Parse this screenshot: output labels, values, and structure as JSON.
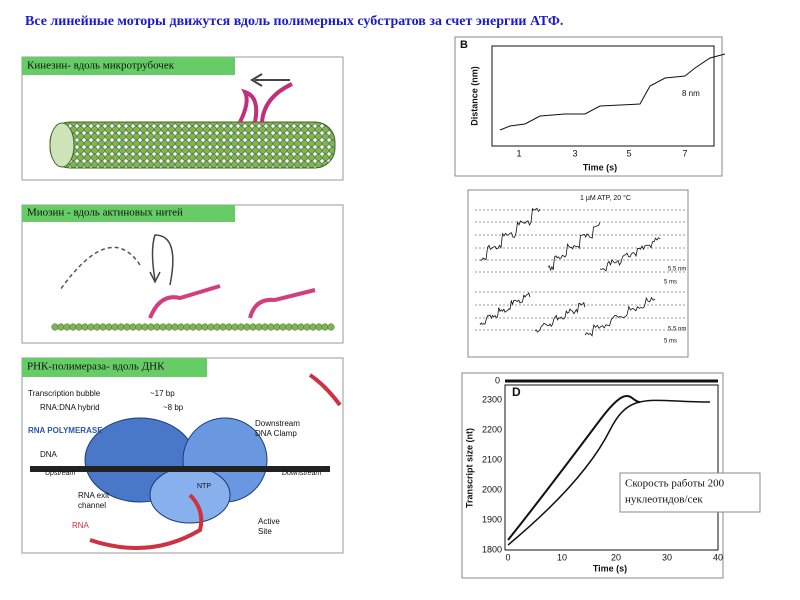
{
  "title": "Все линейные моторы движутся вдоль полимерных субстратов за счет энергии АТФ.",
  "panels": [
    {
      "label": "Кинезин- вдоль микротрубочек"
    },
    {
      "label": "Миозин - вдоль актиновых  нитей"
    },
    {
      "label": "РНК-полимераза- вдоль ДНК"
    }
  ],
  "figure_b": {
    "letter": "B",
    "ylabel": "Distance (nm)",
    "xlabel": "Time (s)",
    "xticks": [
      "1",
      "3",
      "5",
      "7"
    ],
    "step": "8 nm"
  },
  "figure_c": {
    "condition": "1 µM ATP,  20 °C",
    "scale_y": [
      "5.5 nm",
      "5.5 nm"
    ],
    "scale_x": [
      "5 ms",
      "5 ms"
    ]
  },
  "figure_rnap": {
    "bubble": "Transcription bubble",
    "bubble_len": "~17 bp",
    "hybrid": "RNA:DNA hybrid",
    "hybrid_len": "~8 bp",
    "enzyme": "RNA POLYMERASE",
    "dna": "DNA",
    "upstream": "Upstream",
    "downstream": "Downstream",
    "clamp": [
      "Downstream",
      "DNA Clamp"
    ],
    "exit": [
      "RNA exit",
      "channel"
    ],
    "rna": "RNA",
    "site": [
      "Active",
      "Site"
    ],
    "ntp": "NTP"
  },
  "figure_d": {
    "letter": "D",
    "ylabel": "Transcript size (nt)",
    "xlabel": "Time (s)",
    "top": "0",
    "yticks": [
      "2300",
      "2200",
      "2100",
      "2000",
      "1900",
      "1800"
    ],
    "xticks": [
      "0",
      "10",
      "20",
      "30",
      "40"
    ]
  },
  "note": [
    "Скорость работы 200",
    "нуклеотидов/сек"
  ]
}
